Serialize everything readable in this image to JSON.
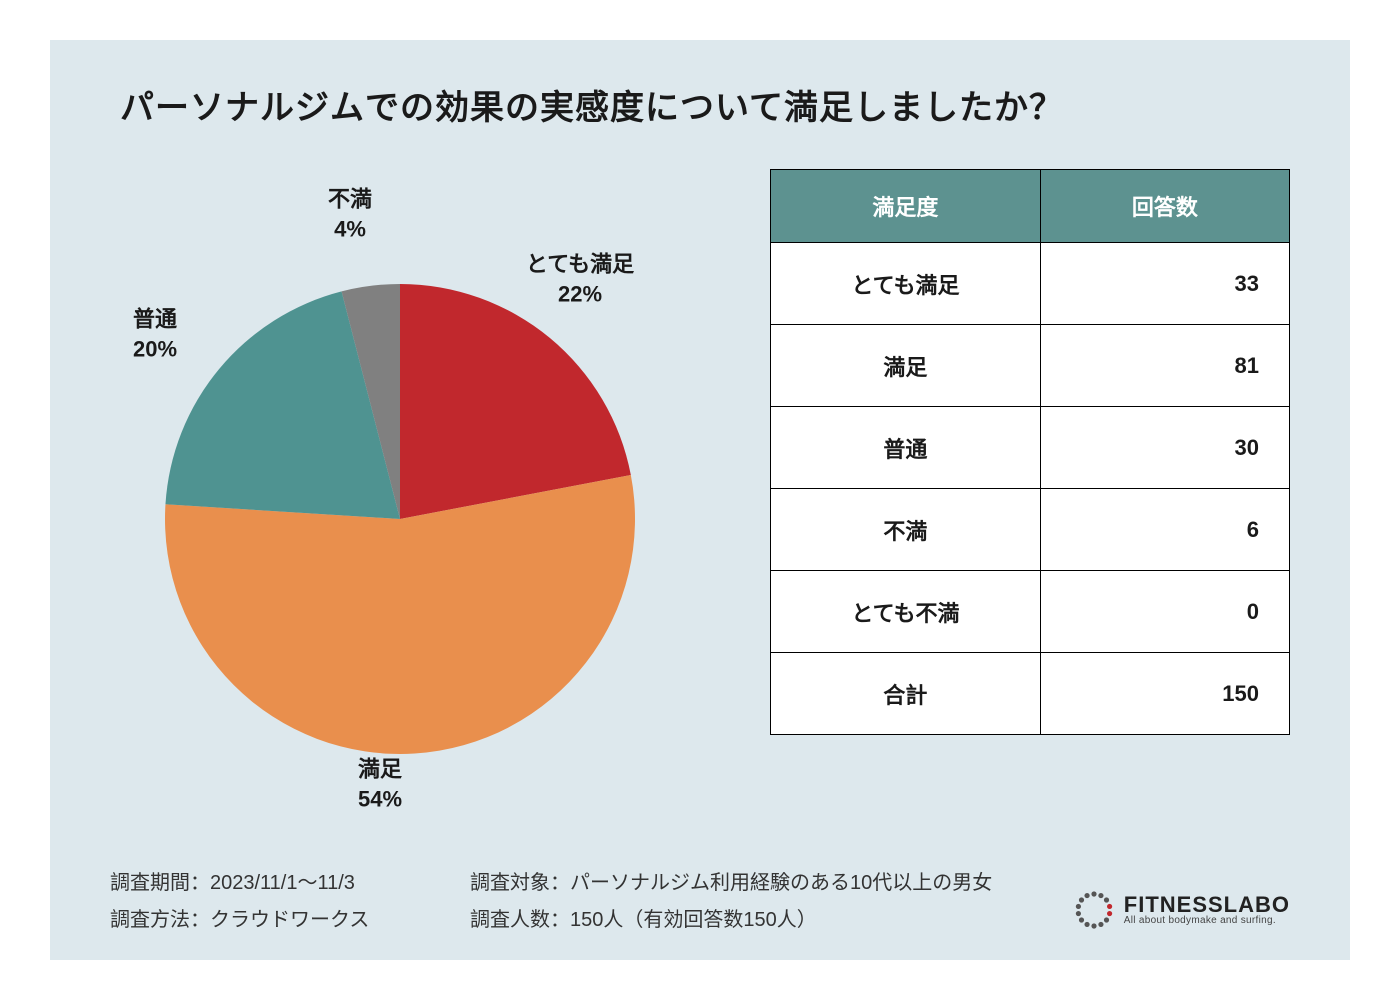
{
  "title": "パーソナルジムでの効果の実感度について満足しましたか？",
  "chart": {
    "type": "pie",
    "background_color": "#dde8ed",
    "slices": [
      {
        "label": "とても満足",
        "percent": 22,
        "color": "#c1282d"
      },
      {
        "label": "満足",
        "percent": 54,
        "color": "#e98f4d"
      },
      {
        "label": "普通",
        "percent": 20,
        "color": "#4f9391"
      },
      {
        "label": "不満",
        "percent": 4,
        "color": "#808080"
      }
    ],
    "label_fontsize": 22,
    "label_color": "#1a1a1a",
    "radius": 235
  },
  "table": {
    "header_bg": "#5d9290",
    "header_fg": "#ffffff",
    "border_color": "#000000",
    "columns": [
      "満足度",
      "回答数"
    ],
    "rows": [
      [
        "とても満足",
        "33"
      ],
      [
        "満足",
        "81"
      ],
      [
        "普通",
        "30"
      ],
      [
        "不満",
        "6"
      ],
      [
        "とても不満",
        "0"
      ],
      [
        "合計",
        "150"
      ]
    ]
  },
  "footer": {
    "period_label": "調査期間：2023/11/1〜11/3",
    "method_label": "調査方法：クラウドワークス",
    "target_label": "調査対象：パーソナルジム利用経験のある10代以上の男女",
    "count_label": "調査人数：150人（有効回答数150人）"
  },
  "logo": {
    "main": "FITNESSLABO",
    "sub": "All about bodymake and surfing.",
    "accent_color": "#c1282d"
  }
}
